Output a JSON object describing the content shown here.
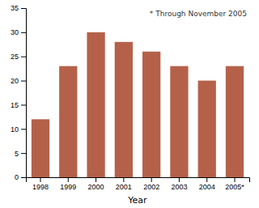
{
  "chart_data": {
    "type": "bar",
    "categories": [
      "1998",
      "1999",
      "2000",
      "2001",
      "2002",
      "2003",
      "2004",
      "2005*"
    ],
    "values": [
      12,
      23,
      30,
      28,
      26,
      23,
      20,
      23
    ],
    "color": "#b5614a",
    "xlabel": "Year",
    "annotation": "* Through November 2005",
    "ylim": [
      0,
      35
    ],
    "yticks": [
      0,
      5,
      10,
      15,
      20,
      25,
      30,
      35
    ],
    "grid": false
  }
}
